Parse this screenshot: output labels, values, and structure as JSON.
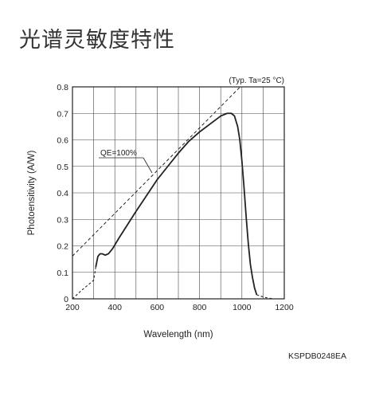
{
  "page": {
    "title": "光谱灵敏度特性",
    "doc_code": "KSPDB0248EA"
  },
  "chart_data": {
    "type": "line",
    "condition": "(Typ. Ta=25 °C)",
    "xlabel": "Wavelength (nm)",
    "ylabel": "Photoensitivity (A/W)",
    "xlim": [
      200,
      1200
    ],
    "ylim": [
      0,
      0.8
    ],
    "grid": true,
    "x_ticks": [
      200,
      400,
      600,
      800,
      1000,
      1200
    ],
    "y_ticks": [
      0,
      0.1,
      0.2,
      0.3,
      0.4,
      0.5,
      0.6,
      0.7,
      0.8
    ],
    "x_minor_step": 100,
    "y_minor_step": 0.1,
    "series": [
      {
        "style": "solid",
        "x": [
          310,
          320,
          330,
          340,
          355,
          370,
          390,
          420,
          460,
          500,
          550,
          600,
          650,
          700,
          750,
          800,
          850,
          900,
          930,
          950,
          965,
          980,
          990,
          1000,
          1010,
          1020,
          1030,
          1040,
          1050,
          1060,
          1070
        ],
        "y": [
          0.12,
          0.16,
          0.17,
          0.17,
          0.165,
          0.17,
          0.19,
          0.23,
          0.28,
          0.33,
          0.39,
          0.45,
          0.5,
          0.55,
          0.595,
          0.63,
          0.66,
          0.69,
          0.7,
          0.7,
          0.69,
          0.65,
          0.6,
          0.52,
          0.42,
          0.31,
          0.21,
          0.13,
          0.08,
          0.04,
          0.015
        ]
      },
      {
        "style": "dashed",
        "x": [
          200,
          240,
          270,
          300,
          310
        ],
        "y": [
          0.0,
          0.03,
          0.05,
          0.07,
          0.12
        ]
      },
      {
        "style": "dashed",
        "x": [
          1070,
          1090,
          1110,
          1130,
          1150
        ],
        "y": [
          0.015,
          0.01,
          0.005,
          0.002,
          0.0
        ]
      }
    ],
    "reference_line": {
      "label": "QE=100%",
      "style": "dashed",
      "x": [
        200,
        1000
      ],
      "y": [
        0.1613,
        0.8065
      ]
    }
  }
}
